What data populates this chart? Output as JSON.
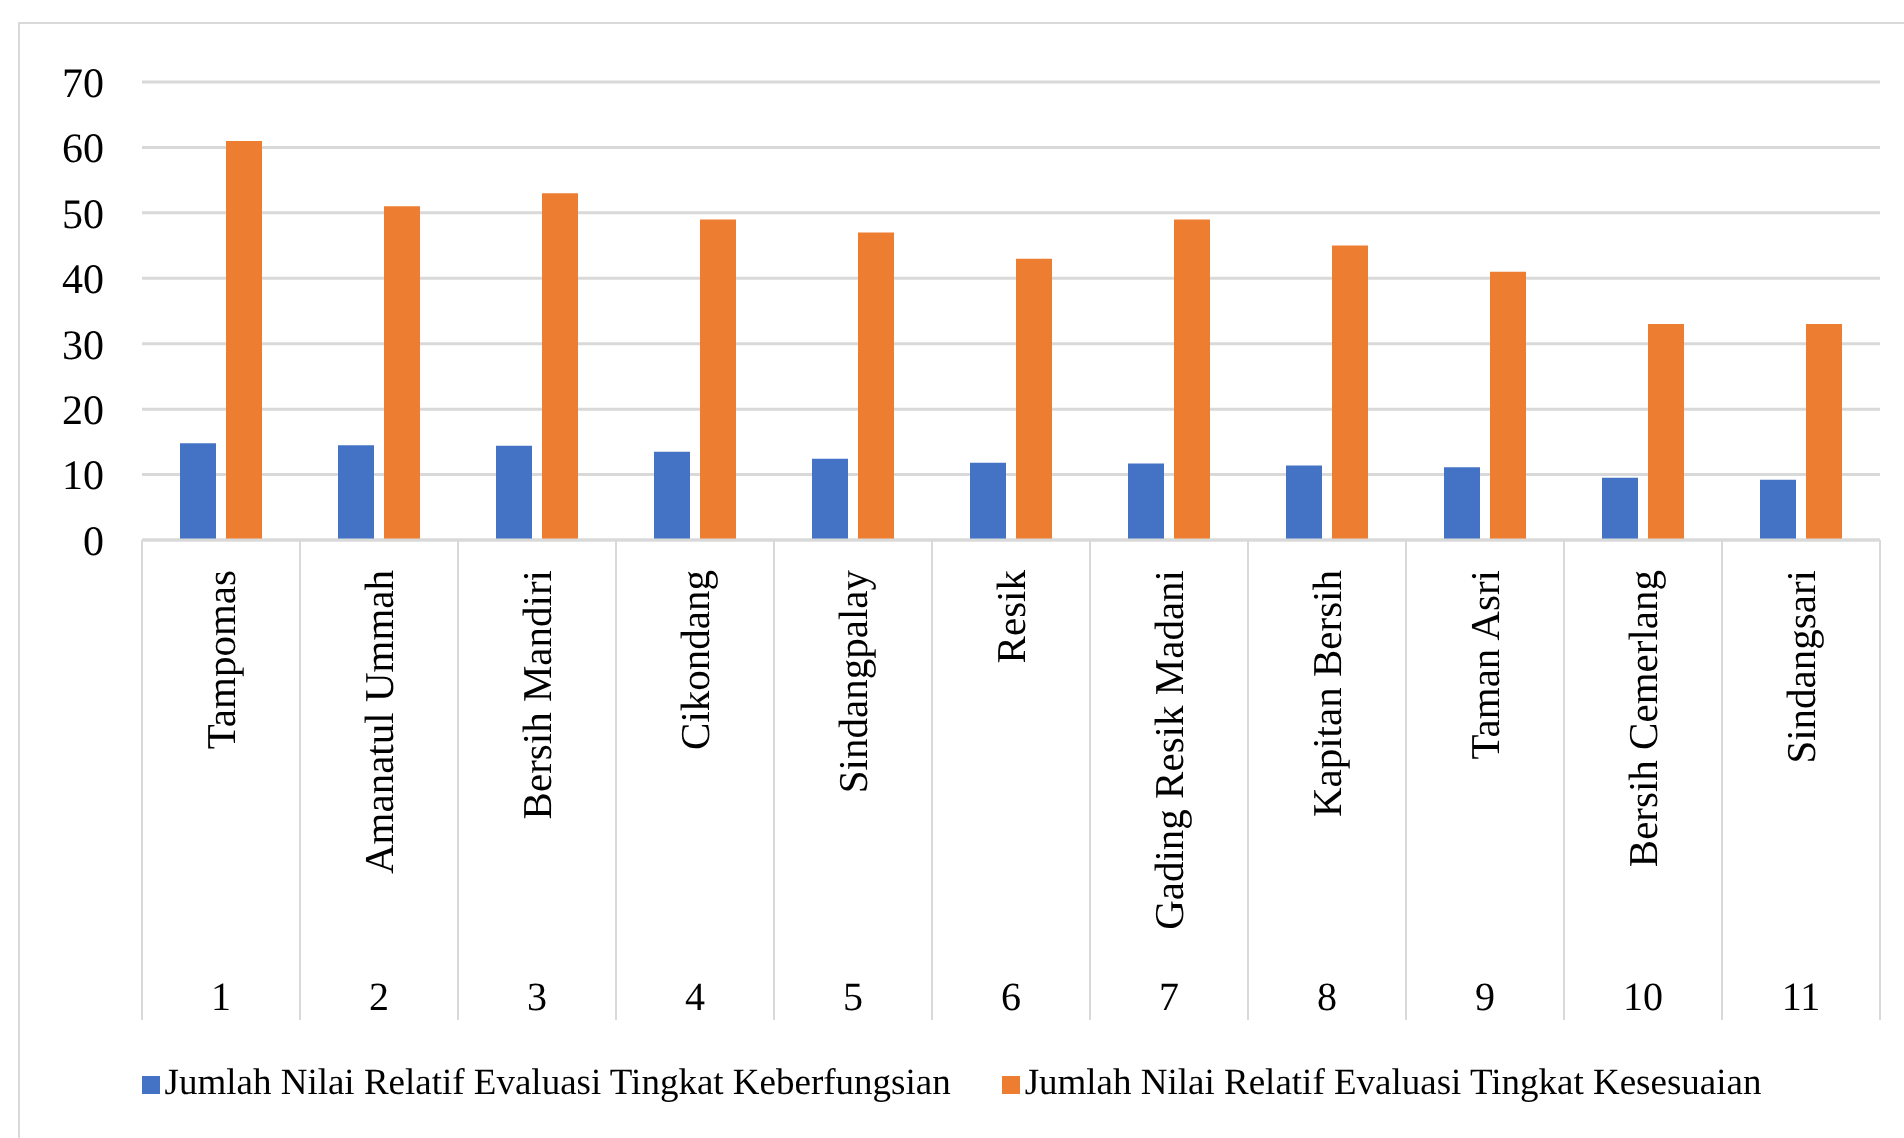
{
  "chart_data": {
    "type": "bar",
    "categories": [
      "Tampomas",
      "Amanatul Ummah",
      "Bersih Mandiri",
      "Cikondang",
      "Sindangpalay",
      "Resik",
      "Gading Resik Madani",
      "Kapitan Bersih",
      "Taman Asri",
      "Bersih Cemerlang",
      "Sindangsari"
    ],
    "series": [
      {
        "name": "Jumlah Nilai Relatif Evaluasi Tingkat Keberfungsian",
        "color": "#4472c4",
        "values": [
          14.8,
          14.5,
          14.4,
          13.5,
          12.4,
          11.8,
          11.7,
          11.4,
          11.1,
          9.5,
          9.2
        ]
      },
      {
        "name": "Jumlah Nilai Relatif Evaluasi Tingkat Kesesuaian",
        "color": "#ed7d31",
        "values": [
          61,
          51,
          53,
          49,
          47,
          43,
          49,
          45,
          41,
          33,
          33
        ]
      }
    ],
    "ylim": [
      0,
      70
    ],
    "yticks": [
      0,
      10,
      20,
      30,
      40,
      50,
      60,
      70
    ],
    "grid": "y",
    "legend": "bottom",
    "annotations": [
      "1",
      "2",
      "3",
      "4",
      "5",
      "6",
      "7",
      "8",
      "9",
      "10",
      "11"
    ]
  }
}
